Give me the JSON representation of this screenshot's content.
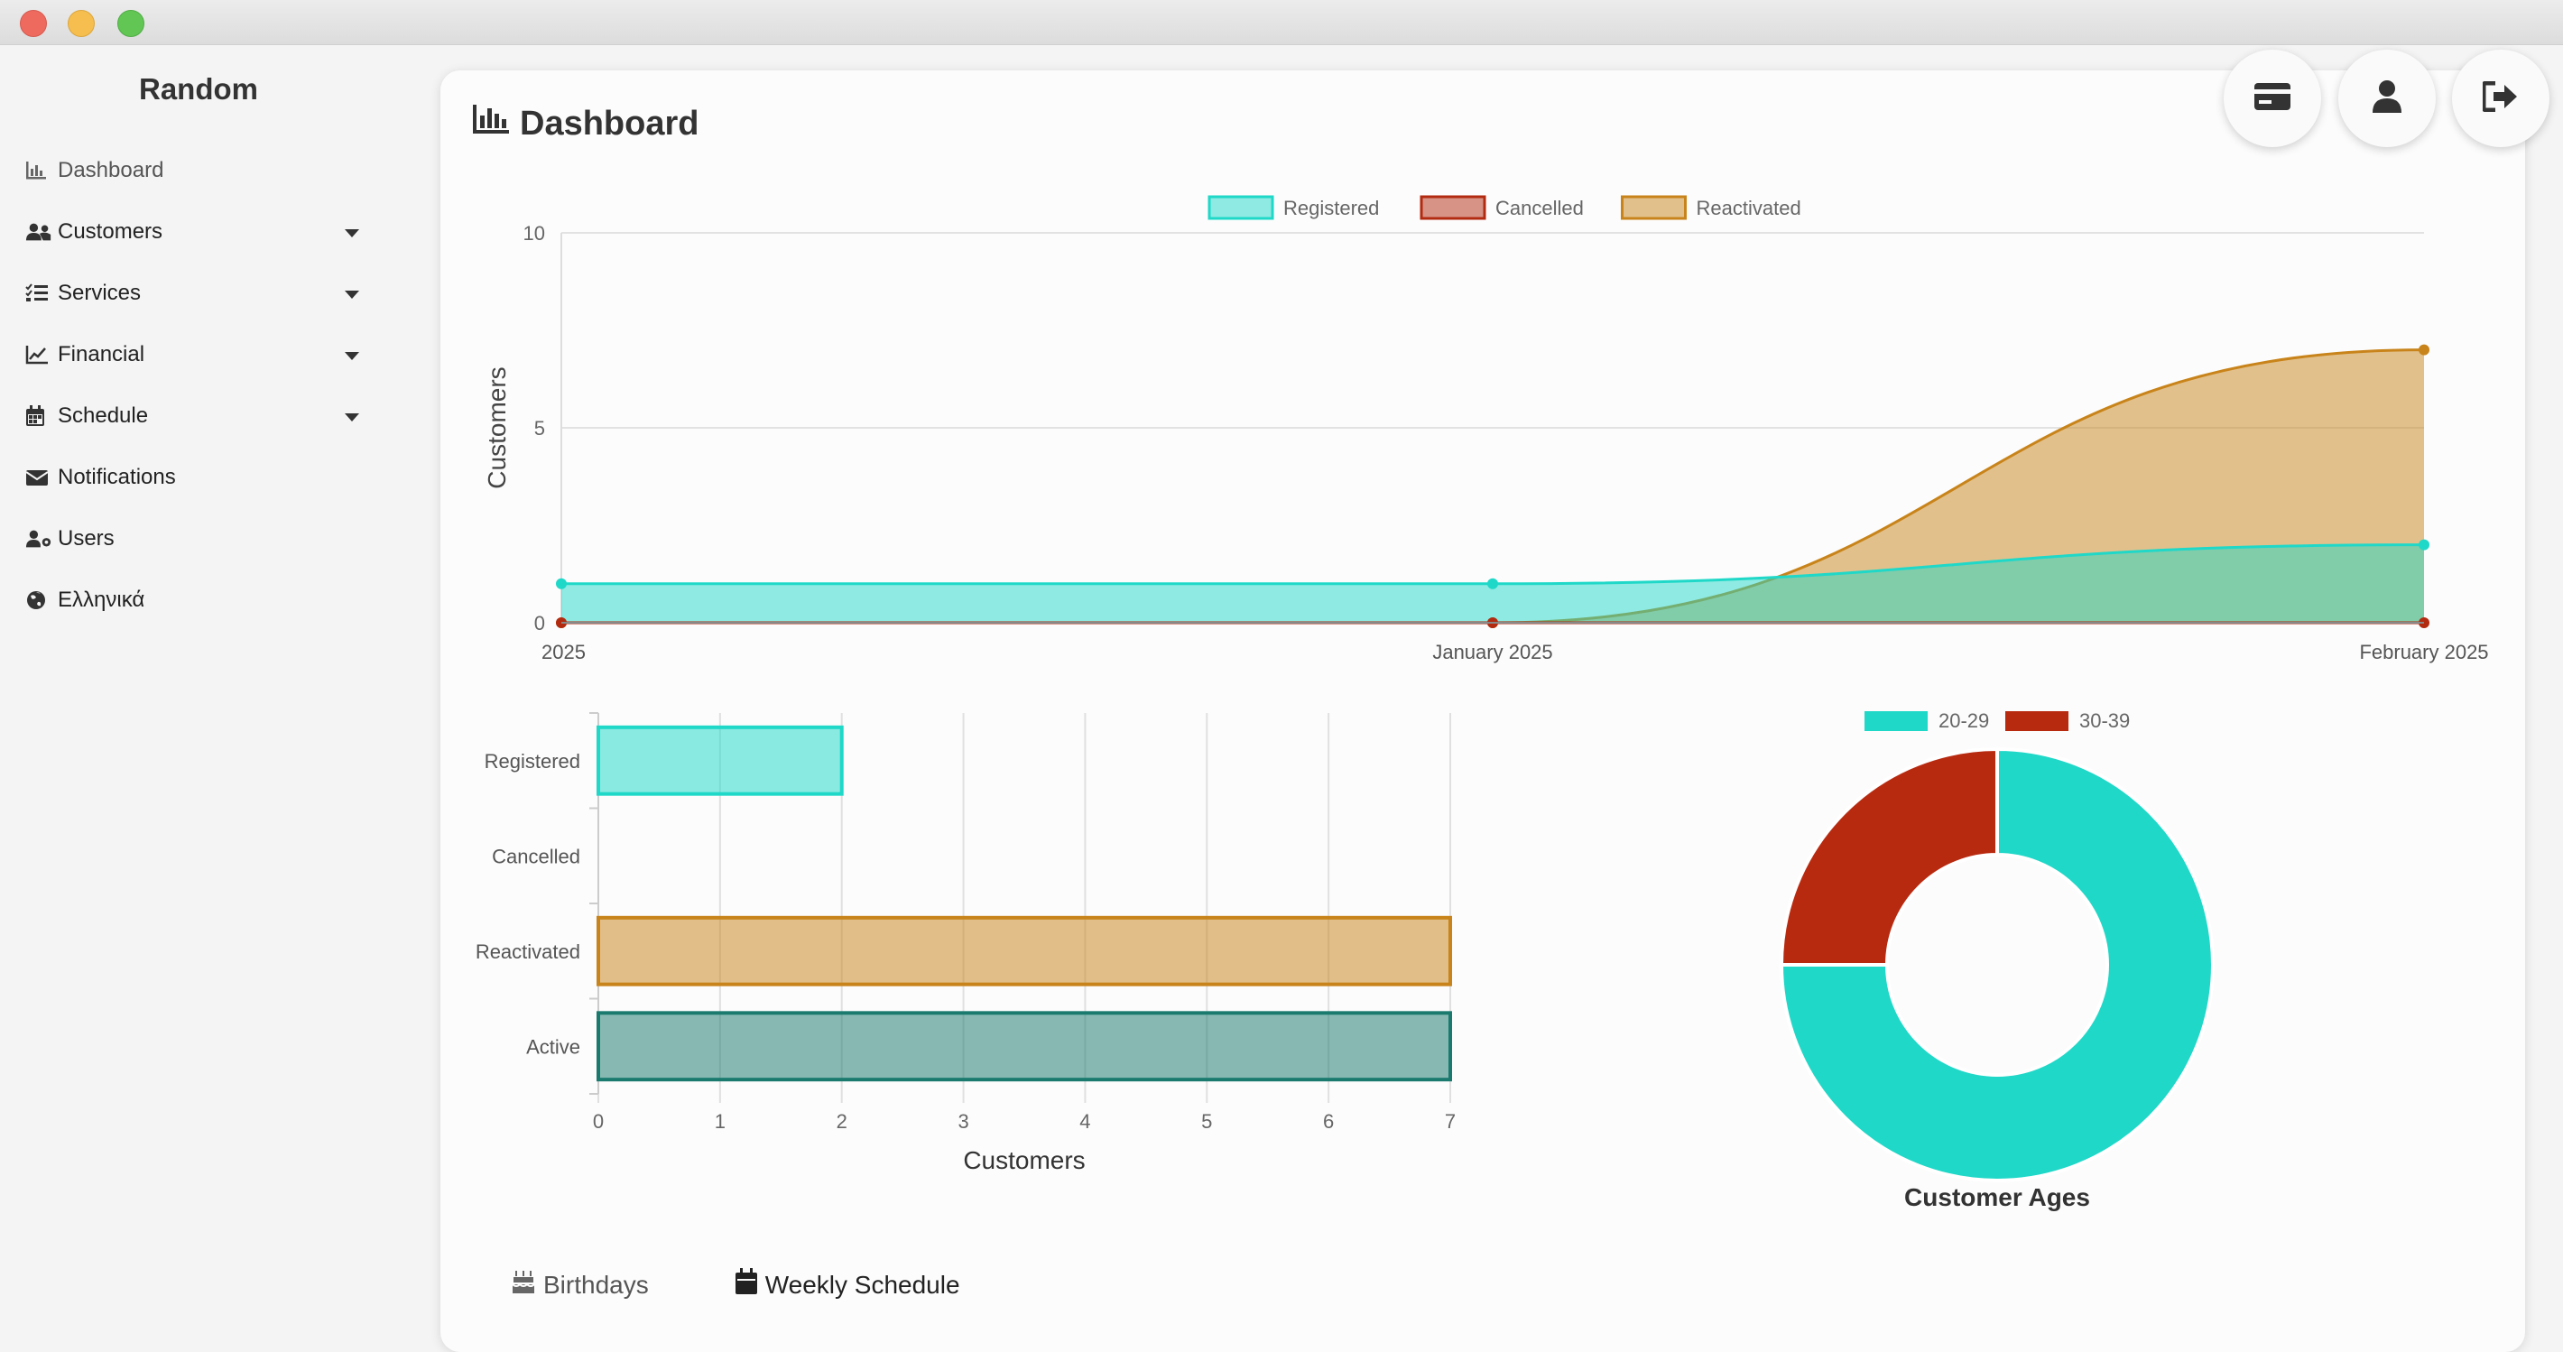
{
  "window": {
    "controls": [
      "close",
      "minimize",
      "maximize"
    ]
  },
  "sidebar": {
    "brand": "Random",
    "items": [
      {
        "label": "Dashboard",
        "icon": "chart-bar-icon"
      },
      {
        "label": "Customers",
        "icon": "users-icon"
      },
      {
        "label": "Services",
        "icon": "list-check-icon"
      },
      {
        "label": "Financial",
        "icon": "chart-line-icon"
      },
      {
        "label": "Schedule",
        "icon": "calendar-icon"
      },
      {
        "label": "Notifications",
        "icon": "envelope-icon"
      },
      {
        "label": "Users",
        "icon": "user-gear-icon"
      },
      {
        "label": "Ελληνικά",
        "icon": "globe-icon"
      }
    ]
  },
  "header": {
    "title": "Dashboard",
    "actions": [
      "credit-card-icon",
      "user-icon",
      "logout-icon"
    ]
  },
  "colors": {
    "registered": "#1fd8c8",
    "cancelled": "#b22a10",
    "reactivated": "#c8841a",
    "active": "#1a7a6e",
    "age_20_29": "#1fd8c8",
    "age_30_39": "#b82a10"
  },
  "chart_data": [
    {
      "type": "area",
      "legend": [
        "Registered",
        "Cancelled",
        "Reactivated"
      ],
      "categories": [
        "2025",
        "January 2025",
        "February 2025"
      ],
      "series": [
        {
          "name": "Registered",
          "values": [
            1,
            1,
            2
          ]
        },
        {
          "name": "Cancelled",
          "values": [
            0,
            0,
            0
          ]
        },
        {
          "name": "Reactivated",
          "values": [
            0,
            0,
            7
          ]
        }
      ],
      "ylabel": "Customers",
      "ylim": [
        0,
        10
      ],
      "yticks": [
        "0",
        "5",
        "10"
      ],
      "grid": true,
      "legend_position": "top"
    },
    {
      "type": "bar",
      "orientation": "horizontal",
      "categories": [
        "Registered",
        "Cancelled",
        "Reactivated",
        "Active"
      ],
      "values": [
        2,
        0,
        7,
        7
      ],
      "xlabel": "Customers",
      "xlim": [
        0,
        7
      ],
      "xticks": [
        "0",
        "1",
        "2",
        "3",
        "4",
        "5",
        "6",
        "7"
      ],
      "grid": true
    },
    {
      "type": "pie",
      "variant": "doughnut",
      "title": "Customer Ages",
      "labels": [
        "20-29",
        "30-39"
      ],
      "values": [
        3,
        1
      ],
      "legend_position": "top"
    }
  ],
  "tabs": [
    {
      "label": "Birthdays",
      "icon": "birthday-cake-icon"
    },
    {
      "label": "Weekly Schedule",
      "icon": "calendar-icon"
    }
  ]
}
